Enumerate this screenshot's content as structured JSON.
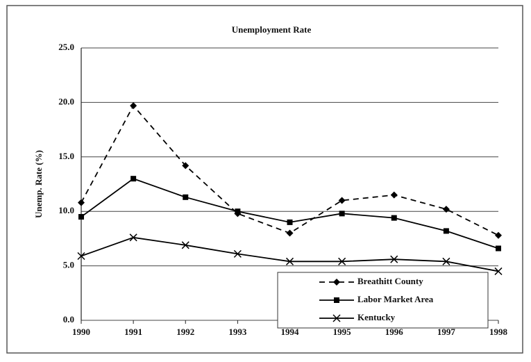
{
  "chart_data": {
    "type": "line",
    "title": "Unemployment Rate",
    "y_label": "Unemp. Rate (%)",
    "categories": [
      "1990",
      "1991",
      "1992",
      "1993",
      "1994",
      "1995",
      "1996",
      "1997",
      "1998"
    ],
    "series": [
      {
        "name": "Breathitt County",
        "color": "#000000",
        "dash": true,
        "marker": "diamond",
        "values": [
          10.8,
          19.7,
          14.2,
          9.8,
          8.0,
          11.0,
          11.5,
          10.2,
          7.8
        ]
      },
      {
        "name": "Labor Market Area",
        "color": "#000000",
        "dash": false,
        "marker": "square",
        "values": [
          9.5,
          13.0,
          11.3,
          10.0,
          9.0,
          9.8,
          9.4,
          8.2,
          6.6
        ]
      },
      {
        "name": "Kentucky",
        "color": "#000000",
        "dash": false,
        "marker": "x",
        "values": [
          5.9,
          7.6,
          6.9,
          6.1,
          5.4,
          5.4,
          5.6,
          5.4,
          4.5
        ]
      }
    ],
    "ylim": [
      0,
      25
    ],
    "yticks": [
      {
        "value": 0,
        "label": "0.0"
      },
      {
        "value": 5,
        "label": "5.0"
      },
      {
        "value": 10,
        "label": "10.0"
      },
      {
        "value": 15,
        "label": "15.0"
      },
      {
        "value": 20,
        "label": "20.0"
      },
      {
        "value": 25,
        "label": "25.0"
      }
    ],
    "grid": true,
    "legend": "lower right"
  }
}
